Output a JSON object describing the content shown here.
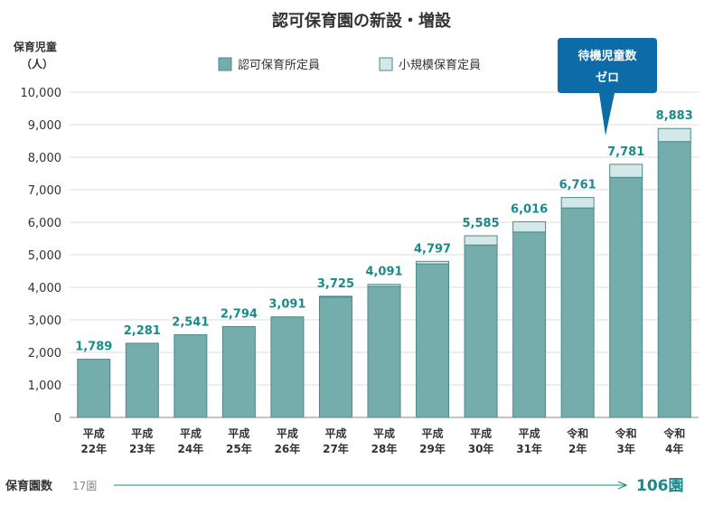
{
  "colors": {
    "accent": "#1a8a8a",
    "main_fill": "#75adad",
    "main_stroke": "#4b8a8a",
    "small_fill": "#d4e8e8",
    "small_stroke": "#4b8a8a",
    "callout": "#0d6ba8",
    "grid": "#dddddd",
    "axis": "#888888"
  },
  "chart_data": {
    "type": "bar",
    "stacked": true,
    "title": "認可保育園の新設・増設",
    "ylabel": "保育児童\n（人）",
    "ylim": [
      0,
      10000
    ],
    "yticks": [
      "0",
      "1,000",
      "2,000",
      "3,000",
      "4,000",
      "5,000",
      "6,000",
      "7,000",
      "8,000",
      "9,000",
      "10,000"
    ],
    "categories": [
      "平成\n22年",
      "平成\n23年",
      "平成\n24年",
      "平成\n25年",
      "平成\n26年",
      "平成\n27年",
      "平成\n28年",
      "平成\n29年",
      "平成\n30年",
      "平成\n31年",
      "令和\n2年",
      "令和\n3年",
      "令和\n4年"
    ],
    "series": [
      {
        "name": "認可保育所定員",
        "values": [
          1789,
          2281,
          2541,
          2794,
          3091,
          3700,
          4030,
          4720,
          5300,
          5700,
          6440,
          7380,
          8480
        ]
      },
      {
        "name": "小規模保育定員",
        "values": [
          0,
          0,
          0,
          0,
          0,
          25,
          61,
          77,
          285,
          316,
          321,
          401,
          403
        ]
      }
    ],
    "totals": [
      "1,789",
      "2,281",
      "2,541",
      "2,794",
      "3,091",
      "3,725",
      "4,091",
      "4,797",
      "5,585",
      "6,016",
      "6,761",
      "7,781",
      "8,883"
    ],
    "grid": true,
    "legend_position": "top"
  },
  "callout": {
    "line1": "待機児童数",
    "line2": "ゼロ"
  },
  "footer": {
    "label": "保育園数",
    "start": "17園",
    "end": "106園"
  }
}
